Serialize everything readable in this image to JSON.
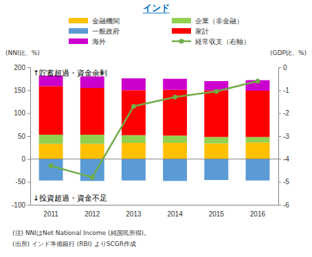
{
  "chart_data": {
    "type": "bar",
    "title": "インド",
    "categories": [
      "2011",
      "2012",
      "2013",
      "2014",
      "2015",
      "2016"
    ],
    "stacked": true,
    "grid": false,
    "legend": "top",
    "y_label": "(NNI比、%)",
    "y2_label": "(GDP比、%)",
    "ylim": [
      -100,
      200
    ],
    "yticks": [
      -100,
      -50,
      0,
      50,
      100,
      150,
      200
    ],
    "y2lim": [
      -6,
      0
    ],
    "y2ticks": [
      -6,
      -5,
      -4,
      -3,
      -2,
      -1,
      0
    ],
    "annotations": [
      "↑貯蓄超過・資金余剰",
      "↓投資超過・資金不足"
    ],
    "notes": [
      "(注) NNIはNet National Income (純国民所得)。",
      "(出所) インド準備銀行 (RBI) よりSCGR作成"
    ],
    "series": [
      {
        "name": "金融機関",
        "color": "#FFC000",
        "type": "bar",
        "values": [
          33,
          33,
          35,
          35,
          34,
          36
        ]
      },
      {
        "name": "企業（非金融）",
        "color": "#92D050",
        "type": "bar",
        "values": [
          20,
          20,
          17,
          16,
          14,
          12
        ]
      },
      {
        "name": "一般政府",
        "color": "#5B9BD5",
        "type": "bar",
        "values": [
          -47,
          -48,
          -47,
          -48,
          -46,
          -47
        ]
      },
      {
        "name": "家計",
        "color": "#FF0000",
        "type": "bar",
        "values": [
          106,
          102,
          98,
          100,
          102,
          101
        ]
      },
      {
        "name": "海外",
        "color": "#CC00CC",
        "type": "bar",
        "values": [
          23,
          25,
          26,
          24,
          20,
          23
        ]
      },
      {
        "name": "経常収支（右軸）",
        "color": "#70AD47",
        "type": "line",
        "marker": "circle",
        "axis": "y2",
        "values": [
          -4.3,
          -4.8,
          -1.7,
          -1.3,
          -1.05,
          -0.6
        ]
      }
    ]
  }
}
